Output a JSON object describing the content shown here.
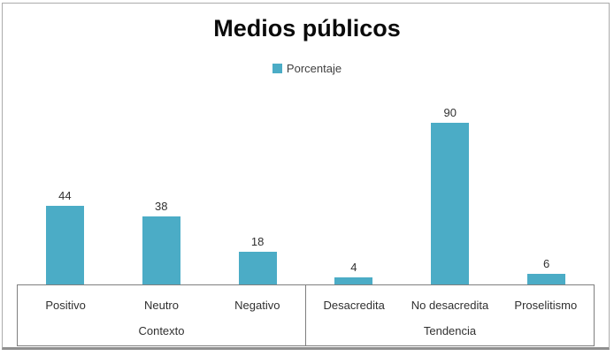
{
  "chart_data": {
    "type": "bar",
    "title": "Medios públicos",
    "legend": {
      "label": "Porcentaje",
      "position": "top"
    },
    "categories": [
      "Positivo",
      "Neutro",
      "Negativo",
      "Desacredita",
      "No desacredita",
      "Proselitismo"
    ],
    "series": [
      {
        "name": "Porcentaje",
        "values": [
          44,
          38,
          18,
          4,
          90,
          6
        ]
      }
    ],
    "groups": [
      {
        "label": "Contexto",
        "categories": [
          "Positivo",
          "Neutro",
          "Negativo"
        ],
        "values": [
          44,
          38,
          18
        ]
      },
      {
        "label": "Tendencia",
        "categories": [
          "Desacredita",
          "No desacredita",
          "Proselitismo"
        ],
        "values": [
          4,
          90,
          6
        ]
      }
    ],
    "value_labels": [
      "44",
      "38",
      "18",
      "4",
      "90",
      "6"
    ],
    "ylim": [
      0,
      95
    ],
    "grid": false,
    "y_axis_visible": false,
    "colors": {
      "bar": "#4BACC6",
      "axis_line": "#7F7F7F",
      "text": "#303030",
      "title_text": "#0A0A0A",
      "frame_border": "#ABABAB"
    }
  }
}
